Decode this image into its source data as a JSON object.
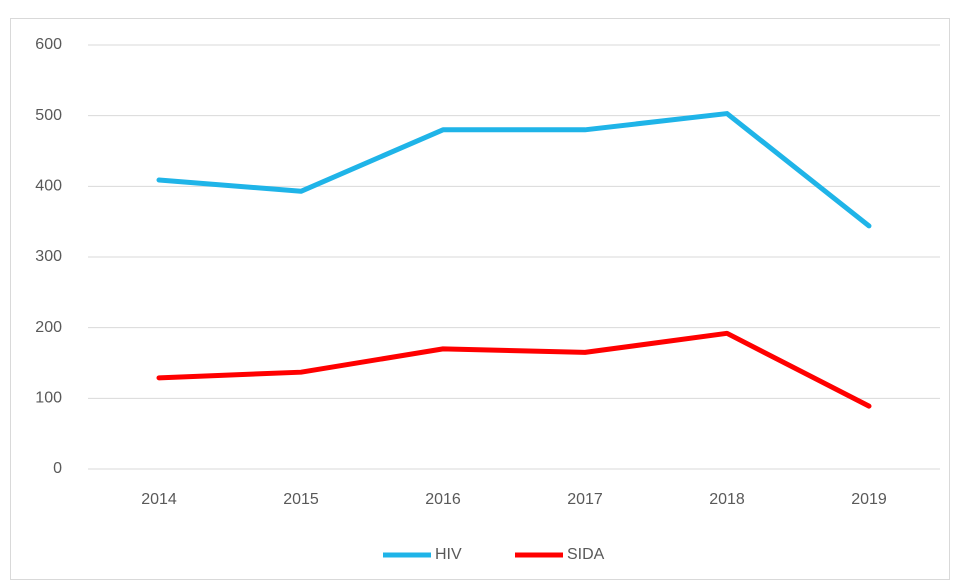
{
  "chart_data": {
    "type": "line",
    "categories": [
      "2014",
      "2015",
      "2016",
      "2017",
      "2018",
      "2019"
    ],
    "series": [
      {
        "name": "HIV",
        "color": "#1fb4e8",
        "values": [
          409,
          393,
          480,
          480,
          503,
          344
        ]
      },
      {
        "name": "SIDA",
        "color": "#ff0000",
        "values": [
          129,
          137,
          170,
          165,
          192,
          89
        ]
      }
    ],
    "ylim": [
      0,
      600
    ],
    "yticks": [
      0,
      100,
      200,
      300,
      400,
      500,
      600
    ],
    "grid": true,
    "legend": "bottom"
  }
}
